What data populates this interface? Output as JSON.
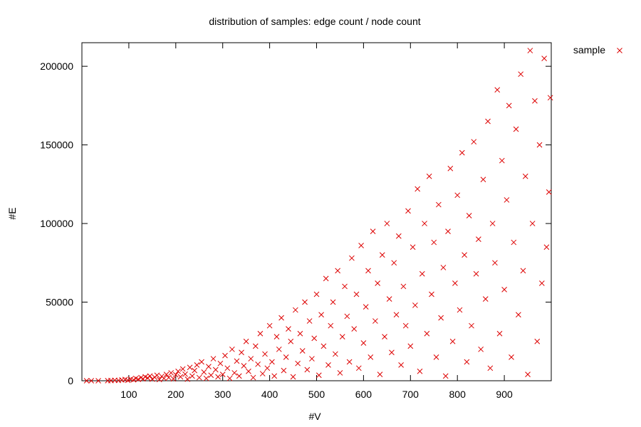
{
  "chart_data": {
    "type": "scatter",
    "title": "distribution of samples: edge count / node count",
    "xlabel": "#V",
    "ylabel": "#E",
    "xlim": [
      0,
      1000
    ],
    "ylim": [
      0,
      215000
    ],
    "x_ticks": [
      100,
      200,
      300,
      400,
      500,
      600,
      700,
      800,
      900
    ],
    "y_ticks": [
      0,
      50000,
      100000,
      150000,
      200000
    ],
    "grid": false,
    "legend_position": "top-right, outside plot",
    "series": [
      {
        "name": "sample",
        "marker": "x",
        "color": "#dd0000",
        "points": [
          [
            10,
            0
          ],
          [
            20,
            0
          ],
          [
            35,
            0
          ],
          [
            55,
            50
          ],
          [
            62,
            100
          ],
          [
            70,
            300
          ],
          [
            78,
            200
          ],
          [
            85,
            500
          ],
          [
            92,
            800
          ],
          [
            98,
            300
          ],
          [
            104,
            1000
          ],
          [
            110,
            600
          ],
          [
            115,
            1500
          ],
          [
            120,
            900
          ],
          [
            126,
            2000
          ],
          [
            130,
            1200
          ],
          [
            135,
            2500
          ],
          [
            140,
            1800
          ],
          [
            145,
            3000
          ],
          [
            150,
            1000
          ],
          [
            155,
            2200
          ],
          [
            160,
            3500
          ],
          [
            165,
            800
          ],
          [
            170,
            2800
          ],
          [
            175,
            1500
          ],
          [
            180,
            4000
          ],
          [
            185,
            2000
          ],
          [
            190,
            5000
          ],
          [
            195,
            1200
          ],
          [
            200,
            3800
          ],
          [
            205,
            6000
          ],
          [
            210,
            2500
          ],
          [
            215,
            7500
          ],
          [
            220,
            4200
          ],
          [
            225,
            1000
          ],
          [
            230,
            8500
          ],
          [
            235,
            3000
          ],
          [
            240,
            6500
          ],
          [
            245,
            10000
          ],
          [
            250,
            2000
          ],
          [
            255,
            12000
          ],
          [
            260,
            5500
          ],
          [
            265,
            1500
          ],
          [
            270,
            9000
          ],
          [
            275,
            3500
          ],
          [
            280,
            14000
          ],
          [
            285,
            7000
          ],
          [
            290,
            2500
          ],
          [
            295,
            11000
          ],
          [
            300,
            4000
          ],
          [
            305,
            16000
          ],
          [
            310,
            8000
          ],
          [
            315,
            1500
          ],
          [
            320,
            20000
          ],
          [
            325,
            5000
          ],
          [
            330,
            12500
          ],
          [
            335,
            3000
          ],
          [
            340,
            18000
          ],
          [
            345,
            9500
          ],
          [
            350,
            25000
          ],
          [
            355,
            6000
          ],
          [
            360,
            14000
          ],
          [
            365,
            2000
          ],
          [
            370,
            22000
          ],
          [
            375,
            10500
          ],
          [
            380,
            30000
          ],
          [
            385,
            4500
          ],
          [
            390,
            17000
          ],
          [
            395,
            8000
          ],
          [
            400,
            35000
          ],
          [
            405,
            12000
          ],
          [
            410,
            3000
          ],
          [
            415,
            28000
          ],
          [
            420,
            20000
          ],
          [
            425,
            40000
          ],
          [
            430,
            6500
          ],
          [
            435,
            15000
          ],
          [
            440,
            33000
          ],
          [
            445,
            25000
          ],
          [
            450,
            2500
          ],
          [
            455,
            45000
          ],
          [
            460,
            11000
          ],
          [
            465,
            30000
          ],
          [
            470,
            19000
          ],
          [
            475,
            50000
          ],
          [
            480,
            7000
          ],
          [
            485,
            38000
          ],
          [
            490,
            14000
          ],
          [
            495,
            27000
          ],
          [
            500,
            55000
          ],
          [
            505,
            3500
          ],
          [
            510,
            42000
          ],
          [
            515,
            22000
          ],
          [
            520,
            65000
          ],
          [
            525,
            10000
          ],
          [
            530,
            35000
          ],
          [
            535,
            50000
          ],
          [
            540,
            17000
          ],
          [
            545,
            70000
          ],
          [
            550,
            5000
          ],
          [
            555,
            28000
          ],
          [
            560,
            60000
          ],
          [
            565,
            41000
          ],
          [
            570,
            12000
          ],
          [
            575,
            78000
          ],
          [
            580,
            33000
          ],
          [
            585,
            55000
          ],
          [
            590,
            8000
          ],
          [
            595,
            86000
          ],
          [
            600,
            24000
          ],
          [
            605,
            47000
          ],
          [
            610,
            70000
          ],
          [
            615,
            15000
          ],
          [
            620,
            95000
          ],
          [
            625,
            38000
          ],
          [
            630,
            62000
          ],
          [
            635,
            4000
          ],
          [
            640,
            80000
          ],
          [
            645,
            28000
          ],
          [
            650,
            100000
          ],
          [
            655,
            52000
          ],
          [
            660,
            18000
          ],
          [
            665,
            75000
          ],
          [
            670,
            42000
          ],
          [
            675,
            92000
          ],
          [
            680,
            10000
          ],
          [
            685,
            60000
          ],
          [
            690,
            35000
          ],
          [
            695,
            108000
          ],
          [
            700,
            22000
          ],
          [
            705,
            85000
          ],
          [
            710,
            48000
          ],
          [
            715,
            122000
          ],
          [
            720,
            6000
          ],
          [
            725,
            68000
          ],
          [
            730,
            100000
          ],
          [
            735,
            30000
          ],
          [
            740,
            130000
          ],
          [
            745,
            55000
          ],
          [
            750,
            88000
          ],
          [
            755,
            15000
          ],
          [
            760,
            112000
          ],
          [
            765,
            40000
          ],
          [
            770,
            72000
          ],
          [
            775,
            3000
          ],
          [
            780,
            95000
          ],
          [
            785,
            135000
          ],
          [
            790,
            25000
          ],
          [
            795,
            62000
          ],
          [
            800,
            118000
          ],
          [
            805,
            45000
          ],
          [
            810,
            145000
          ],
          [
            815,
            80000
          ],
          [
            820,
            12000
          ],
          [
            825,
            105000
          ],
          [
            830,
            35000
          ],
          [
            835,
            152000
          ],
          [
            840,
            68000
          ],
          [
            845,
            90000
          ],
          [
            850,
            20000
          ],
          [
            855,
            128000
          ],
          [
            860,
            52000
          ],
          [
            865,
            165000
          ],
          [
            870,
            8000
          ],
          [
            875,
            100000
          ],
          [
            880,
            75000
          ],
          [
            885,
            185000
          ],
          [
            890,
            30000
          ],
          [
            895,
            140000
          ],
          [
            900,
            58000
          ],
          [
            905,
            115000
          ],
          [
            910,
            175000
          ],
          [
            915,
            15000
          ],
          [
            920,
            88000
          ],
          [
            925,
            160000
          ],
          [
            930,
            42000
          ],
          [
            935,
            195000
          ],
          [
            940,
            70000
          ],
          [
            945,
            130000
          ],
          [
            950,
            4000
          ],
          [
            955,
            210000
          ],
          [
            960,
            100000
          ],
          [
            965,
            178000
          ],
          [
            970,
            25000
          ],
          [
            975,
            150000
          ],
          [
            980,
            62000
          ],
          [
            985,
            205000
          ],
          [
            990,
            85000
          ],
          [
            995,
            120000
          ],
          [
            998,
            180000
          ]
        ]
      }
    ]
  }
}
